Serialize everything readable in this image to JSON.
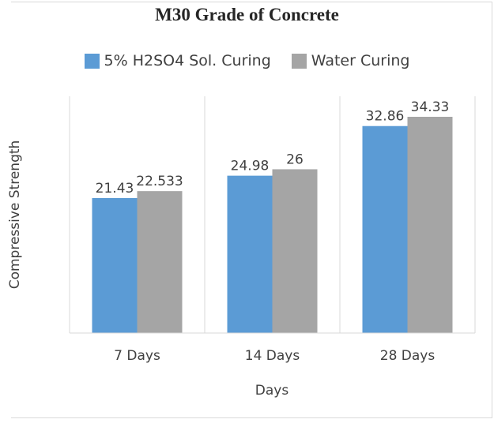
{
  "chart_data": {
    "type": "bar",
    "title": "M30 Grade of Concrete",
    "xlabel": "Days",
    "ylabel": "Compressive Strength",
    "categories": [
      "7 Days",
      "14 Days",
      "28 Days"
    ],
    "series": [
      {
        "name": "5% H2SO4 Sol. Curing",
        "values": [
          21.43,
          24.98,
          32.86
        ],
        "labels": [
          "21.43",
          "24.98",
          "32.86"
        ],
        "color": "#5b9bd5"
      },
      {
        "name": "Water Curing",
        "values": [
          22.533,
          26,
          34.33
        ],
        "labels": [
          "22.533",
          "26",
          "34.33"
        ],
        "color": "#a5a5a5"
      }
    ],
    "ylim": [
      0,
      40
    ],
    "grid": "vertical-category-separators",
    "legend_position": "top"
  }
}
